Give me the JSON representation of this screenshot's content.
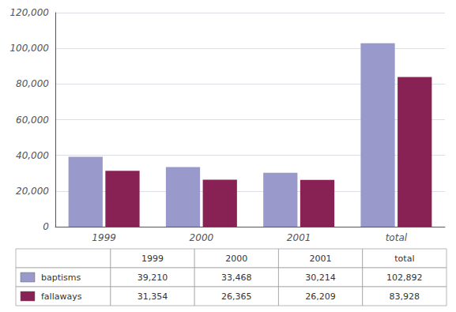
{
  "chart_data": {
    "type": "bar",
    "categories": [
      "1999",
      "2000",
      "2001",
      "total"
    ],
    "series": [
      {
        "name": "baptisms",
        "color": "#9999cc",
        "values": [
          39210,
          33468,
          30214,
          102892
        ],
        "value_labels": [
          "39,210",
          "33,468",
          "30,214",
          "102,892"
        ]
      },
      {
        "name": "fallaways",
        "color": "#882255",
        "values": [
          31354,
          26365,
          26209,
          83928
        ],
        "value_labels": [
          "31,354",
          "26,365",
          "26,209",
          "83,928"
        ]
      }
    ],
    "ylim": [
      0,
      120000
    ],
    "yticks": [
      0,
      {
        "value": 20000,
        "label": "20,000"
      },
      {
        "value": 40000,
        "label": "40,000"
      },
      {
        "value": 60000,
        "label": "60,000"
      },
      {
        "value": 80000,
        "label": "80,000"
      },
      {
        "value": 100000,
        "label": "100,000"
      },
      {
        "value": 120000,
        "label": "120,000"
      }
    ],
    "grid": true
  }
}
